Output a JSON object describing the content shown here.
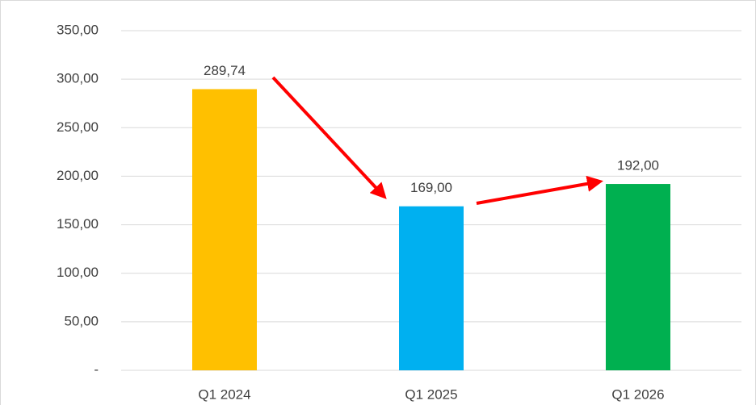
{
  "chart_data": {
    "type": "bar",
    "categories": [
      "Q1 2024",
      "Q1 2025",
      "Q1 2026"
    ],
    "values": [
      289.74,
      169,
      192
    ],
    "value_labels": [
      "289,74",
      "169,00",
      "192,00"
    ],
    "colors": [
      "#ffc000",
      "#00b0f0",
      "#00b050"
    ],
    "ylim": [
      0,
      350
    ],
    "yticks": [
      {
        "value": 0,
        "label": "-"
      },
      {
        "value": 50,
        "label": "50,00"
      },
      {
        "value": 100,
        "label": "100,00"
      },
      {
        "value": 150,
        "label": "150,00"
      },
      {
        "value": 200,
        "label": "200,00"
      },
      {
        "value": 250,
        "label": "250,00"
      },
      {
        "value": 300,
        "label": "300,00"
      },
      {
        "value": 350,
        "label": "350,00"
      }
    ],
    "grid": true
  }
}
